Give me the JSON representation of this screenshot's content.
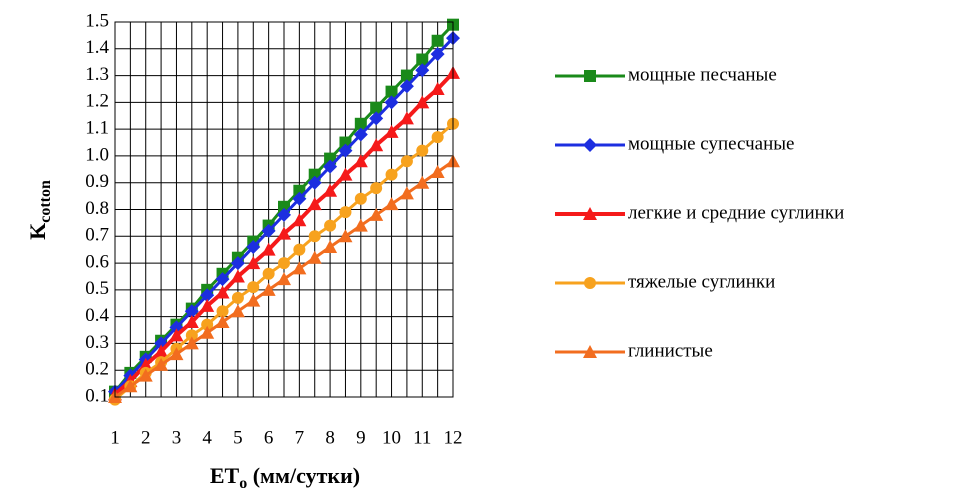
{
  "chart_data": {
    "type": "line",
    "y_label": {
      "main": "K",
      "sub": "cotton"
    },
    "x_label": {
      "main": "ET",
      "sub": "o",
      "rest": " (мм/сутки)"
    },
    "x": [
      1,
      1.5,
      2,
      2.5,
      3,
      3.5,
      4,
      4.5,
      5,
      5.5,
      6,
      6.5,
      7,
      7.5,
      8,
      8.5,
      9,
      9.5,
      10,
      10.5,
      11,
      11.5,
      12
    ],
    "xlim": [
      1,
      12
    ],
    "xticks": [
      1,
      2,
      3,
      4,
      5,
      6,
      7,
      8,
      9,
      10,
      11,
      12
    ],
    "ylim": [
      0.1,
      1.5
    ],
    "yticks": [
      0.1,
      0.2,
      0.3,
      0.4,
      0.5,
      0.6,
      0.7,
      0.8,
      0.9,
      {
        "value": 1,
        "label": "1.0"
      },
      1.1,
      1.2,
      1.3,
      1.4,
      1.5
    ],
    "grid": true,
    "legend": "right",
    "series": [
      {
        "name": "мощные песчаные",
        "color": "#1a8a1a",
        "marker": "square",
        "values": [
          0.12,
          0.19,
          0.25,
          0.31,
          0.37,
          0.43,
          0.5,
          0.56,
          0.62,
          0.68,
          0.74,
          0.81,
          0.87,
          0.93,
          0.99,
          1.05,
          1.12,
          1.18,
          1.24,
          1.3,
          1.36,
          1.43,
          1.49
        ]
      },
      {
        "name": "мощные супесчаные",
        "color": "#1c2ee0",
        "marker": "diamond",
        "values": [
          0.12,
          0.18,
          0.24,
          0.3,
          0.36,
          0.42,
          0.48,
          0.54,
          0.6,
          0.66,
          0.72,
          0.78,
          0.84,
          0.9,
          0.96,
          1.02,
          1.08,
          1.14,
          1.2,
          1.26,
          1.32,
          1.38,
          1.44
        ]
      },
      {
        "name": "легкие и средние суглинки",
        "color": "#f51a1a",
        "marker": "triangle",
        "values": [
          0.11,
          0.16,
          0.22,
          0.27,
          0.33,
          0.38,
          0.44,
          0.49,
          0.55,
          0.6,
          0.65,
          0.71,
          0.76,
          0.82,
          0.87,
          0.93,
          0.98,
          1.04,
          1.09,
          1.14,
          1.2,
          1.25,
          1.31
        ]
      },
      {
        "name": "тяжелые суглинки",
        "color": "#f7a21e",
        "marker": "circle",
        "values": [
          0.09,
          0.14,
          0.19,
          0.23,
          0.28,
          0.33,
          0.37,
          0.42,
          0.47,
          0.51,
          0.56,
          0.6,
          0.65,
          0.7,
          0.74,
          0.79,
          0.84,
          0.88,
          0.93,
          0.98,
          1.02,
          1.07,
          1.12
        ]
      },
      {
        "name": "глинистые",
        "color": "#f26d1f",
        "marker": "triangle",
        "values": [
          0.1,
          0.14,
          0.18,
          0.22,
          0.26,
          0.3,
          0.34,
          0.38,
          0.42,
          0.46,
          0.5,
          0.54,
          0.58,
          0.62,
          0.66,
          0.7,
          0.74,
          0.78,
          0.82,
          0.86,
          0.9,
          0.94,
          0.98
        ]
      }
    ]
  }
}
